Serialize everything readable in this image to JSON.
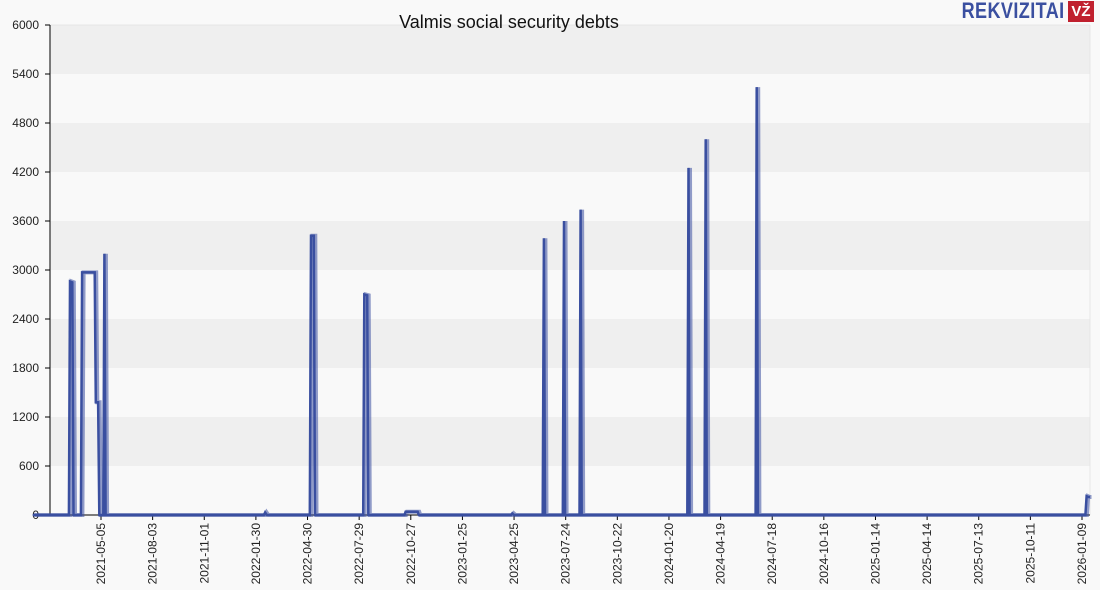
{
  "header": {
    "title": "Valmis social security debts",
    "logo_text": "REKVIZITAI",
    "logo_badge": "VŽ"
  },
  "colors": {
    "line": "#3a4fa0",
    "band_dark": "#efefef",
    "band_light": "#f9f9f9",
    "axis": "#000000",
    "logo": "#3a4fa0",
    "badge": "#c0202e"
  },
  "chart_data": {
    "type": "line",
    "title": "Valmis social security debts",
    "xlabel": "",
    "ylabel": "",
    "ylim": [
      0,
      6000
    ],
    "yticks": [
      0,
      600,
      1200,
      1800,
      2400,
      3000,
      3600,
      4200,
      4800,
      5400,
      6000
    ],
    "xticks": [
      "2021-05-05",
      "2021-08-03",
      "2021-11-01",
      "2022-01-30",
      "2022-04-30",
      "2022-07-29",
      "2022-10-27",
      "2023-01-25",
      "2023-04-25",
      "2023-07-24",
      "2023-10-22",
      "2024-01-20",
      "2024-04-19",
      "2024-07-18",
      "2024-10-16",
      "2025-01-14",
      "2025-04-14",
      "2025-07-13",
      "2025-10-11",
      "2026-01-09"
    ],
    "grid": "alternating horizontal bands",
    "legend": "none",
    "series": [
      {
        "name": "Social security debts",
        "points": [
          [
            "2021-01-06",
            0
          ],
          [
            "2021-03-10",
            0
          ],
          [
            "2021-03-12",
            2860
          ],
          [
            "2021-03-16",
            2850
          ],
          [
            "2021-03-18",
            0
          ],
          [
            "2021-03-31",
            0
          ],
          [
            "2021-04-02",
            2970
          ],
          [
            "2021-04-24",
            2970
          ],
          [
            "2021-04-26",
            1380
          ],
          [
            "2021-04-30",
            1380
          ],
          [
            "2021-05-02",
            0
          ],
          [
            "2021-05-09",
            0
          ],
          [
            "2021-05-11",
            3200
          ],
          [
            "2021-05-13",
            0
          ],
          [
            "2022-02-13",
            0
          ],
          [
            "2022-02-15",
            30
          ],
          [
            "2022-02-18",
            0
          ],
          [
            "2022-05-04",
            0
          ],
          [
            "2022-05-06",
            3420
          ],
          [
            "2022-05-11",
            3420
          ],
          [
            "2022-05-13",
            0
          ],
          [
            "2022-08-05",
            0
          ],
          [
            "2022-08-07",
            2700
          ],
          [
            "2022-08-12",
            2690
          ],
          [
            "2022-08-14",
            0
          ],
          [
            "2022-10-16",
            0
          ],
          [
            "2022-10-18",
            40
          ],
          [
            "2022-11-08",
            40
          ],
          [
            "2022-11-10",
            0
          ],
          [
            "2023-04-20",
            0
          ],
          [
            "2023-04-22",
            20
          ],
          [
            "2023-04-25",
            0
          ],
          [
            "2023-06-14",
            0
          ],
          [
            "2023-06-16",
            3390
          ],
          [
            "2023-06-18",
            0
          ],
          [
            "2023-07-19",
            0
          ],
          [
            "2023-07-21",
            3600
          ],
          [
            "2023-07-23",
            0
          ],
          [
            "2023-08-17",
            0
          ],
          [
            "2023-08-19",
            3740
          ],
          [
            "2023-08-21",
            0
          ],
          [
            "2024-02-21",
            0
          ],
          [
            "2024-02-23",
            4250
          ],
          [
            "2024-02-25",
            0
          ],
          [
            "2024-03-22",
            0
          ],
          [
            "2024-03-24",
            4600
          ],
          [
            "2024-03-26",
            0
          ],
          [
            "2024-06-19",
            0
          ],
          [
            "2024-06-21",
            5240
          ],
          [
            "2024-06-23",
            0
          ],
          [
            "2026-01-15",
            0
          ],
          [
            "2026-01-17",
            230
          ],
          [
            "2026-01-20",
            220
          ]
        ]
      }
    ]
  }
}
